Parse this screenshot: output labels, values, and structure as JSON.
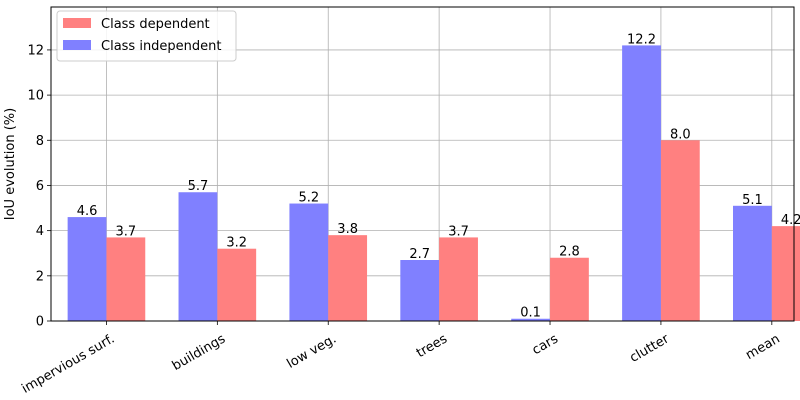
{
  "chart_data": {
    "type": "bar",
    "title": "",
    "xlabel": "",
    "ylabel": "IoU evolution (%)",
    "ylim": [
      0,
      13.9
    ],
    "yticks": [
      0,
      2,
      4,
      6,
      8,
      10,
      12
    ],
    "grid": true,
    "legend_position": "top-left",
    "categories": [
      "impervious surf.",
      "buildings",
      "low veg.",
      "trees",
      "cars",
      "clutter",
      "mean"
    ],
    "series": [
      {
        "name": "Class independent",
        "color": "#8080ff",
        "values": [
          4.6,
          5.7,
          5.2,
          2.7,
          0.1,
          12.2,
          5.1
        ]
      },
      {
        "name": "Class dependent",
        "color": "#ff8080",
        "values": [
          3.7,
          3.2,
          3.8,
          3.7,
          2.8,
          8.0,
          4.2
        ]
      }
    ],
    "legend_order": [
      "Class dependent",
      "Class independent"
    ]
  }
}
